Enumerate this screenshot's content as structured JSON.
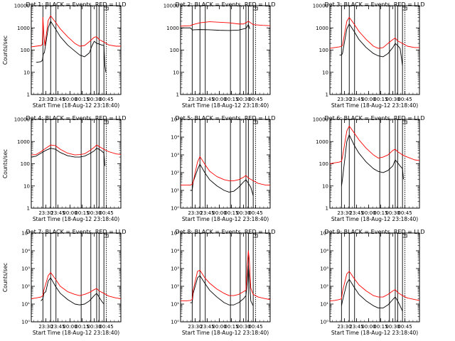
{
  "colors": {
    "events": "#000000",
    "lld": "#ff0000",
    "axis": "#000000",
    "background": "#ffffff"
  },
  "chart_data": [
    {
      "type": "line",
      "title": "Det 1: BLACK = Events, RED = LLD",
      "xlabel": "Start Time (18-Aug-12 23:18:40)",
      "ylabel": "Counts/sec",
      "log_y": true,
      "ylim": [
        1,
        10000
      ],
      "xticks": [
        "23:30",
        "23:45",
        "00:00",
        "00:15",
        "00:30",
        "00:45"
      ],
      "yticks": [
        "1",
        "10",
        "100",
        "1000",
        "10000"
      ],
      "vlines": [
        23.44,
        23.6,
        23.71,
        24.23,
        24.43,
        24.55,
        24.6,
        24.7
      ],
      "dotted_vline": 24.75,
      "series": [
        {
          "name": "Events",
          "x": [
            23.3,
            23.4,
            23.43,
            23.45,
            23.47,
            23.55,
            23.6,
            23.7,
            23.8,
            23.95,
            24.1,
            24.2,
            24.3,
            24.4,
            24.45,
            24.5,
            24.55,
            24.6,
            24.65,
            24.7,
            24.72,
            24.74
          ],
          "y": [
            28,
            30,
            35,
            70,
            75,
            1000,
            2000,
            900,
            400,
            170,
            90,
            60,
            50,
            75,
            150,
            250,
            200,
            190,
            170,
            160,
            20,
            10
          ]
        },
        {
          "name": "LLD",
          "x": [
            23.2,
            23.3,
            23.4,
            23.43,
            23.44,
            23.46,
            23.48,
            23.55,
            23.6,
            23.7,
            23.8,
            23.95,
            24.1,
            24.2,
            24.3,
            24.4,
            24.5,
            24.55,
            24.6,
            24.7,
            24.8,
            24.95,
            25.05
          ],
          "y": [
            140,
            150,
            160,
            180,
            3000,
            500,
            160,
            2200,
            3500,
            1800,
            900,
            400,
            200,
            150,
            160,
            240,
            380,
            400,
            300,
            230,
            170,
            150,
            150
          ]
        }
      ]
    },
    {
      "type": "line",
      "title": "Det 2: BLACK = Events, RED = LLD",
      "xlabel": "Start Time (18-Aug-12 23:18:40)",
      "ylabel": "",
      "log_y": true,
      "ylim": [
        1,
        10000
      ],
      "xticks": [
        "23:30",
        "23:45",
        "00:00",
        "00:15",
        "00:30",
        "00:45"
      ],
      "yticks": [
        "1",
        "10",
        "100",
        "1000",
        "10000"
      ],
      "vlines": [
        23.44,
        23.6,
        23.71,
        24.23,
        24.43,
        24.55,
        24.6,
        24.7
      ],
      "dotted_vline": 24.75,
      "series": [
        {
          "name": "Events",
          "x": [
            23.2,
            23.4,
            23.45,
            23.47,
            23.6,
            23.8,
            24.0,
            24.2,
            24.4,
            24.5,
            24.55,
            24.6,
            24.63
          ],
          "y": [
            1000,
            1000,
            800,
            820,
            840,
            820,
            780,
            760,
            800,
            900,
            950,
            1400,
            900
          ]
        },
        {
          "name": "LLD",
          "x": [
            23.2,
            23.4,
            23.45,
            23.6,
            23.8,
            24.0,
            24.2,
            24.4,
            24.5,
            24.55,
            24.6,
            24.7,
            24.9,
            25.05
          ],
          "y": [
            1200,
            1250,
            1400,
            1700,
            1900,
            1800,
            1700,
            1500,
            1500,
            1700,
            2000,
            1400,
            1300,
            1250
          ]
        }
      ]
    },
    {
      "type": "line",
      "title": "Det 3: BLACK = Events, RED = LLD",
      "xlabel": "Start Time (18-Aug-12 23:18:40)",
      "ylabel": "",
      "log_y": true,
      "ylim": [
        1,
        10000
      ],
      "xticks": [
        "23:30",
        "23:45",
        "00:00",
        "00:15",
        "00:30",
        "00:45"
      ],
      "yticks": [
        "1",
        "10",
        "100",
        "1000",
        "10000"
      ],
      "vlines": [
        23.44,
        23.6,
        23.71,
        24.23,
        24.43,
        24.55,
        24.6,
        24.7
      ],
      "dotted_vline": 24.75,
      "series": [
        {
          "name": "Events",
          "x": [
            23.4,
            23.44,
            23.46,
            23.55,
            23.6,
            23.7,
            23.8,
            23.95,
            24.1,
            24.2,
            24.3,
            24.4,
            24.5,
            24.55,
            24.6,
            24.65,
            24.7
          ],
          "y": [
            60,
            60,
            70,
            900,
            1500,
            700,
            300,
            130,
            70,
            55,
            50,
            70,
            130,
            200,
            160,
            120,
            20
          ]
        },
        {
          "name": "LLD",
          "x": [
            23.2,
            23.3,
            23.4,
            23.44,
            23.46,
            23.55,
            23.6,
            23.7,
            23.8,
            23.95,
            24.1,
            24.2,
            24.3,
            24.4,
            24.5,
            24.55,
            24.6,
            24.7,
            24.8,
            24.95,
            25.05
          ],
          "y": [
            120,
            130,
            140,
            150,
            160,
            2000,
            3000,
            1500,
            700,
            300,
            150,
            120,
            130,
            200,
            300,
            350,
            260,
            200,
            150,
            130,
            130
          ]
        }
      ]
    },
    {
      "type": "line",
      "title": "Det 4: BLACK = Events, RED = LLD",
      "xlabel": "Start Time (18-Aug-12 23:18:40)",
      "ylabel": "Counts/sec",
      "log_y": true,
      "ylim": [
        1,
        10000
      ],
      "xticks": [
        "23:30",
        "23:45",
        "00:00",
        "00:15",
        "00:30",
        "00:45"
      ],
      "yticks": [
        "1",
        "10",
        "100",
        "1000",
        "10000"
      ],
      "vlines": [
        23.44,
        23.6,
        23.71,
        24.23,
        24.43,
        24.55,
        24.6,
        24.7
      ],
      "dotted_vline": 24.75,
      "series": [
        {
          "name": "Events",
          "x": [
            23.2,
            23.3,
            23.4,
            23.5,
            23.6,
            23.7,
            23.8,
            23.95,
            24.1,
            24.2,
            24.3,
            24.4,
            24.5,
            24.55,
            24.6,
            24.65,
            24.7,
            24.72
          ],
          "y": [
            200,
            220,
            300,
            400,
            500,
            450,
            320,
            230,
            200,
            200,
            220,
            280,
            380,
            500,
            450,
            380,
            300,
            80
          ]
        },
        {
          "name": "LLD",
          "x": [
            23.2,
            23.3,
            23.4,
            23.5,
            23.6,
            23.7,
            23.8,
            23.95,
            24.1,
            24.2,
            24.3,
            24.4,
            24.5,
            24.55,
            24.6,
            24.7,
            24.8,
            24.95,
            25.05
          ],
          "y": [
            250,
            260,
            350,
            500,
            700,
            650,
            450,
            300,
            250,
            260,
            280,
            380,
            550,
            700,
            600,
            450,
            350,
            280,
            260
          ]
        }
      ]
    },
    {
      "type": "line",
      "title": "Det 5: BLACK = Events, RED = LLD",
      "xlabel": "Start Time (18-Aug-12 23:18:40)",
      "ylabel": "",
      "log_y": true,
      "ylim": [
        1,
        100000
      ],
      "xticks": [
        "23:30",
        "23:45",
        "00:00",
        "00:15",
        "00:30",
        "00:45"
      ],
      "yticks": [
        "10⁰",
        "10¹",
        "10²",
        "10³",
        "10⁴",
        "10⁵"
      ],
      "vlines": [
        23.44,
        23.6,
        23.71,
        24.23,
        24.43,
        24.55,
        24.6,
        24.7
      ],
      "dotted_vline": 24.75,
      "series": [
        {
          "name": "Events",
          "x": [
            23.4,
            23.44,
            23.46,
            23.55,
            23.6,
            23.7,
            23.8,
            23.95,
            24.1,
            24.2,
            24.3,
            24.4,
            24.5,
            24.55,
            24.6,
            24.65,
            24.7
          ],
          "y": [
            10,
            10,
            30,
            150,
            300,
            100,
            40,
            18,
            10,
            8,
            9,
            15,
            30,
            40,
            25,
            15,
            5
          ]
        },
        {
          "name": "LLD",
          "x": [
            23.2,
            23.3,
            23.4,
            23.44,
            23.46,
            23.55,
            23.6,
            23.7,
            23.8,
            23.95,
            24.1,
            24.2,
            24.3,
            24.4,
            24.5,
            24.55,
            24.6,
            24.7,
            24.8,
            24.95,
            25.05
          ],
          "y": [
            20,
            20,
            20,
            22,
            30,
            400,
            800,
            300,
            120,
            60,
            40,
            35,
            35,
            40,
            55,
            70,
            50,
            35,
            25,
            20,
            20
          ]
        }
      ]
    },
    {
      "type": "line",
      "title": "Det 6: BLACK = Events, RED = LLD",
      "xlabel": "Start Time (18-Aug-12 23:18:40)",
      "ylabel": "",
      "log_y": true,
      "ylim": [
        1,
        10000
      ],
      "xticks": [
        "23:30",
        "23:45",
        "00:00",
        "00:15",
        "00:30",
        "00:45"
      ],
      "yticks": [
        "1",
        "10",
        "100",
        "1000",
        "10000"
      ],
      "vlines": [
        23.44,
        23.6,
        23.71,
        24.23,
        24.43,
        24.55,
        24.6,
        24.7
      ],
      "dotted_vline": 24.75,
      "series": [
        {
          "name": "Events",
          "x": [
            23.44,
            23.46,
            23.55,
            23.6,
            23.7,
            23.8,
            23.95,
            24.1,
            24.2,
            24.3,
            24.4,
            24.5,
            24.55,
            24.6,
            24.65,
            24.7,
            24.72
          ],
          "y": [
            10,
            20,
            1000,
            2000,
            700,
            300,
            120,
            60,
            45,
            40,
            50,
            80,
            150,
            110,
            80,
            60,
            20
          ]
        },
        {
          "name": "LLD",
          "x": [
            23.2,
            23.3,
            23.4,
            23.44,
            23.46,
            23.55,
            23.6,
            23.7,
            23.8,
            23.95,
            24.1,
            24.2,
            24.3,
            24.4,
            24.5,
            24.55,
            24.6,
            24.7,
            24.8,
            24.95,
            25.05
          ],
          "y": [
            100,
            110,
            120,
            130,
            200,
            3000,
            5000,
            2500,
            1200,
            500,
            250,
            180,
            200,
            250,
            400,
            450,
            350,
            250,
            200,
            150,
            140
          ]
        }
      ]
    },
    {
      "type": "line",
      "title": "Det 7: BLACK = Events, RED = LLD",
      "xlabel": "Start Time (18-Aug-12 23:18:40)",
      "ylabel": "Counts/sec",
      "log_y": true,
      "ylim": [
        1,
        100000
      ],
      "xticks": [
        "23:30",
        "23:45",
        "00:00",
        "00:15",
        "00:30",
        "00:45"
      ],
      "yticks": [
        "10⁰",
        "10¹",
        "10²",
        "10³",
        "10⁴",
        "10⁵"
      ],
      "vlines": [
        23.44,
        23.6,
        23.71,
        24.23,
        24.43,
        24.55,
        24.6,
        24.7
      ],
      "dotted_vline": 24.75,
      "series": [
        {
          "name": "Events",
          "x": [
            23.4,
            23.44,
            23.46,
            23.5,
            23.55,
            23.6,
            23.7,
            23.8,
            23.95,
            24.1,
            24.2,
            24.3,
            24.4,
            24.5,
            24.55,
            24.6,
            24.65,
            24.7
          ],
          "y": [
            15,
            20,
            40,
            50,
            200,
            300,
            100,
            40,
            18,
            10,
            9,
            10,
            15,
            30,
            40,
            25,
            15,
            10
          ]
        },
        {
          "name": "LLD",
          "x": [
            23.2,
            23.3,
            23.4,
            23.44,
            23.46,
            23.55,
            23.6,
            23.7,
            23.8,
            23.95,
            24.1,
            24.2,
            24.3,
            24.4,
            24.5,
            24.55,
            24.6,
            24.7,
            24.8,
            24.95,
            25.05
          ],
          "y": [
            20,
            22,
            25,
            30,
            60,
            400,
            600,
            250,
            100,
            50,
            35,
            30,
            35,
            45,
            65,
            75,
            55,
            40,
            28,
            22,
            20
          ]
        }
      ]
    },
    {
      "type": "line",
      "title": "Det 8: BLACK = Events, RED = LLD",
      "xlabel": "Start Time (18-Aug-12 23:18:40)",
      "ylabel": "",
      "log_y": true,
      "ylim": [
        1,
        100000
      ],
      "xticks": [
        "23:30",
        "23:45",
        "00:00",
        "00:15",
        "00:30",
        "00:45"
      ],
      "yticks": [
        "10⁰",
        "10¹",
        "10²",
        "10³",
        "10⁴",
        "10⁵"
      ],
      "vlines": [
        23.44,
        23.6,
        23.71,
        24.23,
        24.43,
        24.55,
        24.6,
        24.7
      ],
      "dotted_vline": 24.75,
      "series": [
        {
          "name": "Events",
          "x": [
            23.4,
            23.44,
            23.46,
            23.55,
            23.6,
            23.7,
            23.8,
            23.95,
            24.1,
            24.2,
            24.3,
            24.4,
            24.5,
            24.55,
            24.58,
            24.6,
            24.62,
            24.65,
            24.7
          ],
          "y": [
            12,
            12,
            40,
            300,
            400,
            150,
            60,
            25,
            12,
            9,
            9,
            12,
            20,
            30,
            200,
            1500,
            300,
            15,
            8
          ]
        },
        {
          "name": "LLD",
          "x": [
            23.2,
            23.3,
            23.4,
            23.44,
            23.46,
            23.55,
            23.6,
            23.7,
            23.8,
            23.95,
            24.1,
            24.2,
            24.3,
            24.4,
            24.5,
            24.55,
            24.58,
            24.6,
            24.62,
            24.65,
            24.7,
            24.8,
            24.95,
            25.05
          ],
          "y": [
            15,
            15,
            16,
            18,
            60,
            700,
            800,
            300,
            150,
            70,
            40,
            30,
            30,
            35,
            50,
            60,
            2000,
            10000,
            3000,
            80,
            35,
            25,
            20,
            18
          ]
        }
      ]
    },
    {
      "type": "line",
      "title": "Det 9: BLACK = Events, RED = LLD",
      "xlabel": "Start Time (18-Aug-12 23:18:40)",
      "ylabel": "",
      "log_y": true,
      "ylim": [
        1,
        100000
      ],
      "xticks": [
        "23:30",
        "23:45",
        "00:00",
        "00:15",
        "00:30",
        "00:45"
      ],
      "yticks": [
        "10⁰",
        "10¹",
        "10²",
        "10³",
        "10⁴",
        "10⁵"
      ],
      "vlines": [
        23.44,
        23.6,
        23.71,
        24.23,
        24.43,
        24.55,
        24.6,
        24.7
      ],
      "dotted_vline": 24.75,
      "series": [
        {
          "name": "Events",
          "x": [
            23.44,
            23.46,
            23.55,
            23.6,
            23.7,
            23.8,
            23.95,
            24.1,
            24.2,
            24.3,
            24.4,
            24.5,
            24.55,
            24.6,
            24.65,
            24.7
          ],
          "y": [
            8,
            15,
            150,
            250,
            90,
            35,
            15,
            8,
            6,
            6,
            9,
            18,
            25,
            15,
            8,
            4
          ]
        },
        {
          "name": "LLD",
          "x": [
            23.2,
            23.3,
            23.4,
            23.44,
            23.46,
            23.55,
            23.6,
            23.7,
            23.8,
            23.95,
            24.1,
            24.2,
            24.3,
            24.4,
            24.5,
            24.55,
            24.6,
            24.7,
            24.8,
            24.95,
            25.05
          ],
          "y": [
            15,
            16,
            18,
            20,
            50,
            500,
            700,
            280,
            120,
            55,
            30,
            25,
            25,
            35,
            55,
            65,
            45,
            30,
            22,
            18,
            16
          ]
        }
      ]
    }
  ]
}
